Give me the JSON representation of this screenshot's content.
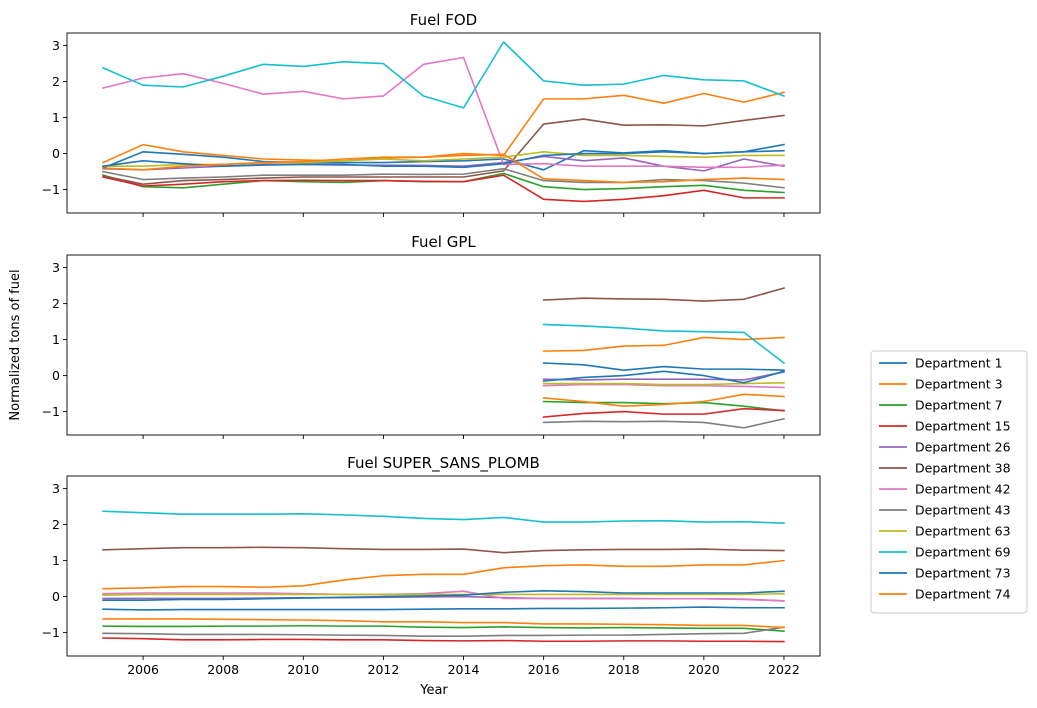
{
  "ylabel": "Normalized tons of fuel",
  "xlabel": "Year",
  "chart_data": {
    "type": "line",
    "x_ticks": [
      2006,
      2008,
      2010,
      2012,
      2014,
      2016,
      2018,
      2020,
      2022
    ],
    "y_ticks": [
      -1,
      0,
      1,
      2,
      3
    ],
    "xlim": [
      2004.1,
      2022.9
    ],
    "ylim": [
      -1.65,
      3.35
    ],
    "grid": false,
    "legend_position": "right",
    "legend": [
      {
        "name": "Department 1",
        "color": "#1f77b4"
      },
      {
        "name": "Department 3",
        "color": "#ff7f0e"
      },
      {
        "name": "Department 7",
        "color": "#2ca02c"
      },
      {
        "name": "Department 15",
        "color": "#d62728"
      },
      {
        "name": "Department 26",
        "color": "#9467bd"
      },
      {
        "name": "Department 38",
        "color": "#8c564b"
      },
      {
        "name": "Department 42",
        "color": "#e377c2"
      },
      {
        "name": "Department 43",
        "color": "#7f7f7f"
      },
      {
        "name": "Department 63",
        "color": "#bcbd22"
      },
      {
        "name": "Department 69",
        "color": "#17becf"
      },
      {
        "name": "Department 73",
        "color": "#1f77b4"
      },
      {
        "name": "Department 74",
        "color": "#ff7f0e"
      }
    ],
    "panels": [
      {
        "title": "Fuel FOD",
        "x": [
          2005,
          2006,
          2007,
          2008,
          2009,
          2010,
          2011,
          2012,
          2013,
          2014,
          2015,
          2016,
          2017,
          2018,
          2019,
          2020,
          2021,
          2022
        ],
        "series": [
          {
            "name": "Department 1",
            "color": "#1f77b4",
            "values": [
              -0.4,
              0.05,
              -0.02,
              -0.1,
              -0.22,
              -0.25,
              -0.25,
              -0.25,
              -0.22,
              -0.2,
              -0.15,
              -0.45,
              0.08,
              0.02,
              0.08,
              0.0,
              0.05,
              0.25
            ]
          },
          {
            "name": "Department 3",
            "color": "#ff7f0e",
            "values": [
              -0.25,
              0.25,
              0.05,
              -0.05,
              -0.15,
              -0.18,
              -0.2,
              -0.12,
              -0.1,
              0.0,
              -0.05,
              1.52,
              1.52,
              1.62,
              1.4,
              1.67,
              1.43,
              1.7
            ]
          },
          {
            "name": "Department 7",
            "color": "#2ca02c",
            "values": [
              -0.6,
              -0.92,
              -0.95,
              -0.85,
              -0.75,
              -0.78,
              -0.8,
              -0.75,
              -0.78,
              -0.78,
              -0.55,
              -0.92,
              -1.0,
              -0.97,
              -0.92,
              -0.88,
              -1.02,
              -1.08
            ]
          },
          {
            "name": "Department 15",
            "color": "#d62728",
            "values": [
              -0.65,
              -0.9,
              -0.85,
              -0.78,
              -0.75,
              -0.74,
              -0.75,
              -0.75,
              -0.77,
              -0.78,
              -0.6,
              -1.27,
              -1.33,
              -1.27,
              -1.17,
              -1.02,
              -1.23,
              -1.23
            ]
          },
          {
            "name": "Department 26",
            "color": "#9467bd",
            "values": [
              -0.42,
              -0.45,
              -0.4,
              -0.35,
              -0.3,
              -0.3,
              -0.32,
              -0.32,
              -0.33,
              -0.35,
              -0.25,
              -0.08,
              -0.2,
              -0.12,
              -0.35,
              -0.48,
              -0.15,
              -0.35
            ]
          },
          {
            "name": "Department 38",
            "color": "#8c564b",
            "values": [
              -0.62,
              -0.85,
              -0.75,
              -0.72,
              -0.68,
              -0.65,
              -0.65,
              -0.65,
              -0.65,
              -0.65,
              -0.48,
              0.82,
              0.96,
              0.79,
              0.8,
              0.77,
              0.92,
              1.06
            ]
          },
          {
            "name": "Department 42",
            "color": "#e377c2",
            "values": [
              1.82,
              2.1,
              2.22,
              1.95,
              1.65,
              1.73,
              1.52,
              1.6,
              2.48,
              2.67,
              -0.3,
              -0.28,
              -0.35,
              -0.35,
              -0.35,
              -0.38,
              -0.38,
              -0.32
            ]
          },
          {
            "name": "Department 43",
            "color": "#7f7f7f",
            "values": [
              -0.5,
              -0.72,
              -0.68,
              -0.65,
              -0.6,
              -0.6,
              -0.6,
              -0.57,
              -0.58,
              -0.57,
              -0.42,
              -0.75,
              -0.8,
              -0.8,
              -0.72,
              -0.75,
              -0.82,
              -0.95
            ]
          },
          {
            "name": "Department 63",
            "color": "#bcbd22",
            "values": [
              -0.35,
              -0.35,
              -0.3,
              -0.3,
              -0.25,
              -0.25,
              -0.2,
              -0.15,
              -0.2,
              -0.15,
              -0.1,
              0.05,
              -0.05,
              -0.05,
              -0.08,
              -0.1,
              -0.05,
              -0.05
            ]
          },
          {
            "name": "Department 69",
            "color": "#17becf",
            "values": [
              2.38,
              1.9,
              1.85,
              2.15,
              2.48,
              2.42,
              2.55,
              2.5,
              1.6,
              1.27,
              3.1,
              2.02,
              1.9,
              1.93,
              2.17,
              2.05,
              2.02,
              1.6
            ]
          },
          {
            "name": "Department 73",
            "color": "#1f77b4",
            "values": [
              -0.35,
              -0.2,
              -0.28,
              -0.35,
              -0.32,
              -0.3,
              -0.3,
              -0.35,
              -0.35,
              -0.38,
              -0.28,
              -0.05,
              0.0,
              0.0,
              0.05,
              0.0,
              0.05,
              0.08
            ]
          },
          {
            "name": "Department 74",
            "color": "#ff7f0e",
            "values": [
              -0.4,
              -0.45,
              -0.35,
              -0.3,
              -0.25,
              -0.22,
              -0.15,
              -0.1,
              -0.1,
              -0.05,
              -0.02,
              -0.7,
              -0.75,
              -0.8,
              -0.78,
              -0.72,
              -0.68,
              -0.72
            ]
          }
        ]
      },
      {
        "title": "Fuel GPL",
        "x": [
          2016,
          2017,
          2018,
          2019,
          2020,
          2021,
          2022
        ],
        "series": [
          {
            "name": "Department 1",
            "color": "#1f77b4",
            "values": [
              0.35,
              0.3,
              0.15,
              0.25,
              0.18,
              0.18,
              0.15
            ]
          },
          {
            "name": "Department 3",
            "color": "#ff7f0e",
            "values": [
              0.68,
              0.7,
              0.82,
              0.84,
              1.06,
              1.0,
              1.06
            ]
          },
          {
            "name": "Department 7",
            "color": "#2ca02c",
            "values": [
              -0.72,
              -0.75,
              -0.75,
              -0.78,
              -0.75,
              -0.85,
              -0.98
            ]
          },
          {
            "name": "Department 15",
            "color": "#d62728",
            "values": [
              -1.15,
              -1.05,
              -1.0,
              -1.07,
              -1.07,
              -0.92,
              -0.97
            ]
          },
          {
            "name": "Department 26",
            "color": "#9467bd",
            "values": [
              -0.1,
              -0.12,
              -0.1,
              -0.1,
              -0.1,
              -0.12,
              0.1
            ]
          },
          {
            "name": "Department 38",
            "color": "#8c564b",
            "values": [
              2.1,
              2.15,
              2.13,
              2.12,
              2.07,
              2.12,
              2.43
            ]
          },
          {
            "name": "Department 42",
            "color": "#e377c2",
            "values": [
              -0.28,
              -0.25,
              -0.25,
              -0.28,
              -0.28,
              -0.3,
              -0.33
            ]
          },
          {
            "name": "Department 43",
            "color": "#7f7f7f",
            "values": [
              -1.3,
              -1.27,
              -1.28,
              -1.27,
              -1.3,
              -1.45,
              -1.2
            ]
          },
          {
            "name": "Department 63",
            "color": "#bcbd22",
            "values": [
              -0.22,
              -0.22,
              -0.22,
              -0.25,
              -0.25,
              -0.22,
              -0.2
            ]
          },
          {
            "name": "Department 69",
            "color": "#17becf",
            "values": [
              1.42,
              1.38,
              1.32,
              1.24,
              1.22,
              1.2,
              0.35
            ]
          },
          {
            "name": "Department 73",
            "color": "#1f77b4",
            "values": [
              -0.15,
              -0.05,
              0.0,
              0.12,
              0.0,
              -0.2,
              0.12
            ]
          },
          {
            "name": "Department 74",
            "color": "#ff7f0e",
            "values": [
              -0.62,
              -0.72,
              -0.85,
              -0.8,
              -0.72,
              -0.52,
              -0.58
            ]
          }
        ]
      },
      {
        "title": "Fuel SUPER_SANS_PLOMB",
        "x": [
          2005,
          2006,
          2007,
          2008,
          2009,
          2010,
          2011,
          2012,
          2013,
          2014,
          2015,
          2016,
          2017,
          2018,
          2019,
          2020,
          2021,
          2022
        ],
        "series": [
          {
            "name": "Department 1",
            "color": "#1f77b4",
            "values": [
              -0.35,
              -0.37,
              -0.36,
              -0.36,
              -0.36,
              -0.36,
              -0.36,
              -0.36,
              -0.35,
              -0.34,
              -0.34,
              -0.33,
              -0.33,
              -0.32,
              -0.31,
              -0.29,
              -0.31,
              -0.31
            ]
          },
          {
            "name": "Department 3",
            "color": "#ff7f0e",
            "values": [
              0.22,
              0.24,
              0.28,
              0.28,
              0.26,
              0.3,
              0.46,
              0.58,
              0.62,
              0.62,
              0.8,
              0.86,
              0.88,
              0.84,
              0.84,
              0.88,
              0.88,
              1.0
            ]
          },
          {
            "name": "Department 7",
            "color": "#2ca02c",
            "values": [
              -0.82,
              -0.83,
              -0.83,
              -0.82,
              -0.82,
              -0.81,
              -0.82,
              -0.82,
              -0.85,
              -0.86,
              -0.84,
              -0.86,
              -0.87,
              -0.86,
              -0.87,
              -0.88,
              -0.88,
              -0.96
            ]
          },
          {
            "name": "Department 15",
            "color": "#d62728",
            "values": [
              -1.15,
              -1.17,
              -1.2,
              -1.2,
              -1.19,
              -1.19,
              -1.2,
              -1.2,
              -1.22,
              -1.23,
              -1.22,
              -1.24,
              -1.24,
              -1.23,
              -1.23,
              -1.24,
              -1.24,
              -1.25
            ]
          },
          {
            "name": "Department 26",
            "color": "#9467bd",
            "values": [
              -0.05,
              -0.05,
              -0.05,
              -0.05,
              -0.04,
              -0.03,
              -0.03,
              -0.02,
              -0.01,
              0.0,
              -0.03,
              -0.05,
              -0.05,
              -0.05,
              -0.06,
              -0.06,
              -0.07,
              -0.12
            ]
          },
          {
            "name": "Department 38",
            "color": "#8c564b",
            "values": [
              1.3,
              1.33,
              1.36,
              1.36,
              1.37,
              1.36,
              1.33,
              1.31,
              1.31,
              1.32,
              1.22,
              1.28,
              1.3,
              1.31,
              1.31,
              1.32,
              1.29,
              1.28
            ]
          },
          {
            "name": "Department 42",
            "color": "#e377c2",
            "values": [
              0.08,
              0.1,
              0.1,
              0.1,
              0.1,
              0.08,
              0.06,
              0.06,
              0.08,
              0.15,
              -0.05,
              -0.05,
              -0.05,
              -0.06,
              -0.06,
              -0.06,
              -0.08,
              -0.12
            ]
          },
          {
            "name": "Department 43",
            "color": "#7f7f7f",
            "values": [
              -1.02,
              -1.03,
              -1.05,
              -1.05,
              -1.05,
              -1.06,
              -1.07,
              -1.08,
              -1.1,
              -1.1,
              -1.08,
              -1.08,
              -1.07,
              -1.07,
              -1.05,
              -1.03,
              -1.02,
              -0.85
            ]
          },
          {
            "name": "Department 63",
            "color": "#bcbd22",
            "values": [
              0.04,
              0.06,
              0.06,
              0.06,
              0.06,
              0.06,
              0.06,
              0.06,
              0.06,
              0.06,
              0.06,
              0.06,
              0.06,
              0.06,
              0.06,
              0.06,
              0.06,
              0.08
            ]
          },
          {
            "name": "Department 69",
            "color": "#17becf",
            "values": [
              2.37,
              2.33,
              2.29,
              2.29,
              2.29,
              2.3,
              2.27,
              2.23,
              2.17,
              2.14,
              2.2,
              2.07,
              2.07,
              2.1,
              2.11,
              2.07,
              2.08,
              2.04
            ]
          },
          {
            "name": "Department 73",
            "color": "#1f77b4",
            "values": [
              -0.1,
              -0.1,
              -0.08,
              -0.08,
              -0.06,
              -0.04,
              -0.02,
              0.0,
              0.02,
              0.04,
              0.12,
              0.16,
              0.14,
              0.1,
              0.1,
              0.1,
              0.1,
              0.15
            ]
          },
          {
            "name": "Department 74",
            "color": "#ff7f0e",
            "values": [
              -0.62,
              -0.62,
              -0.62,
              -0.63,
              -0.64,
              -0.65,
              -0.67,
              -0.7,
              -0.7,
              -0.72,
              -0.72,
              -0.76,
              -0.76,
              -0.77,
              -0.78,
              -0.8,
              -0.8,
              -0.86
            ]
          }
        ]
      }
    ]
  }
}
